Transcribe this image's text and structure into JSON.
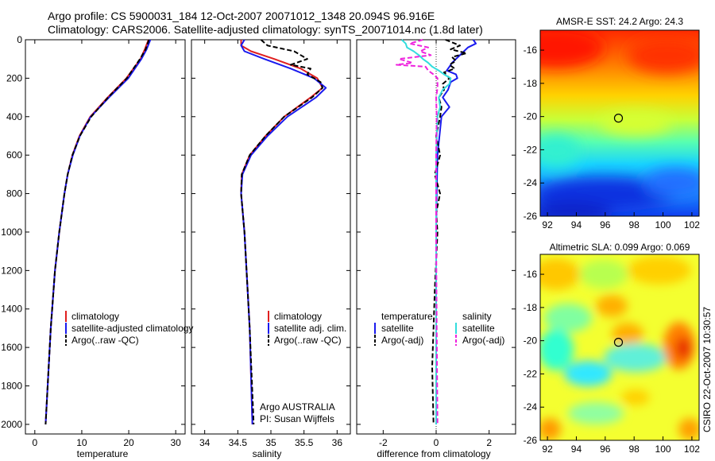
{
  "header": {
    "line1": "Argo profile: CS 5900031_184 12-Oct-2007 20071012_1348 20.094S 96.916E",
    "line2": "Climatology: CARS2006. Satellite-adjusted climatology: synTS_20071014.nc (1.8d later)"
  },
  "side_label": "CSIRO 22-Oct-2007 10:30:57",
  "colors": {
    "climatology": "#e02020",
    "satellite": "#1a1aee",
    "argo": "#000000",
    "temp_satellite": "#1a1aee",
    "sal_satellite": "#33dddd",
    "sal_argo": "#ee22dd"
  },
  "chart_data": [
    {
      "type": "line",
      "xlabel": "temperature",
      "xlim": [
        -2,
        32
      ],
      "ylim": [
        0,
        2050
      ],
      "y_reversed": true,
      "xticks": [
        0,
        10,
        20,
        30
      ],
      "yticks": [
        0,
        200,
        400,
        600,
        800,
        1000,
        1200,
        1400,
        1600,
        1800,
        2000
      ],
      "legend": [
        "climatology",
        "satellite-adjusted climatology",
        "Argo(..raw -QC)"
      ],
      "series": [
        {
          "name": "climatology",
          "style": "red",
          "depth": [
            0,
            50,
            100,
            200,
            300,
            400,
            500,
            600,
            700,
            800,
            1000,
            1200,
            1500,
            2000
          ],
          "values": [
            24.2,
            23.4,
            22.5,
            19.5,
            15.5,
            11.8,
            9.5,
            8.0,
            7.0,
            6.3,
            5.2,
            4.3,
            3.4,
            2.3
          ]
        },
        {
          "name": "satellite-adjusted climatology",
          "style": "blue",
          "depth": [
            0,
            50,
            100,
            200,
            300,
            400,
            500,
            600,
            700,
            800,
            1000,
            1200,
            1500,
            2000
          ],
          "values": [
            24.6,
            23.8,
            22.7,
            19.9,
            15.8,
            11.9,
            9.6,
            8.1,
            7.0,
            6.3,
            5.2,
            4.3,
            3.4,
            2.3
          ]
        },
        {
          "name": "Argo(..raw -QC)",
          "style": "black",
          "depth": [
            0,
            50,
            100,
            200,
            300,
            400,
            500,
            600,
            700,
            800,
            1000,
            1200,
            1500,
            2000
          ],
          "values": [
            24.3,
            23.6,
            22.4,
            19.6,
            15.6,
            12.0,
            9.6,
            8.0,
            7.0,
            6.3,
            5.2,
            4.3,
            3.4,
            2.3
          ]
        }
      ]
    },
    {
      "type": "line",
      "xlabel": "salinity",
      "xlim": [
        33.8,
        36.2
      ],
      "ylim": [
        0,
        2050
      ],
      "y_reversed": true,
      "xticks": [
        34,
        34.5,
        35,
        35.5,
        36
      ],
      "legend": [
        "climatology",
        "satellite adj. clim.",
        "Argo(..raw -QC)"
      ],
      "annotations": [
        "Argo AUSTRALIA",
        "PI: Susan Wijffels"
      ],
      "series": [
        {
          "name": "climatology",
          "style": "red",
          "depth": [
            0,
            30,
            60,
            100,
            150,
            200,
            250,
            300,
            400,
            500,
            600,
            700,
            800,
            1000,
            1500,
            2000
          ],
          "values": [
            34.55,
            34.55,
            34.7,
            35.05,
            35.45,
            35.7,
            35.78,
            35.6,
            35.2,
            34.92,
            34.68,
            34.56,
            34.55,
            34.6,
            34.68,
            34.72
          ]
        },
        {
          "name": "satellite adj. clim.",
          "style": "blue",
          "depth": [
            0,
            30,
            60,
            100,
            150,
            200,
            250,
            300,
            400,
            500,
            600,
            700,
            800,
            1000,
            1500,
            2000
          ],
          "values": [
            34.6,
            34.55,
            34.6,
            34.9,
            35.3,
            35.65,
            35.83,
            35.68,
            35.25,
            34.95,
            34.7,
            34.57,
            34.55,
            34.6,
            34.68,
            34.72
          ]
        },
        {
          "name": "Argo(..raw -QC)",
          "style": "black",
          "depth": [
            0,
            30,
            60,
            100,
            130,
            150,
            180,
            220,
            250,
            300,
            400,
            500,
            600,
            700,
            800,
            1000,
            1500,
            2000
          ],
          "values": [
            34.85,
            34.95,
            35.35,
            35.55,
            35.3,
            35.6,
            35.55,
            35.75,
            35.78,
            35.62,
            35.2,
            34.92,
            34.68,
            34.56,
            34.55,
            34.6,
            34.68,
            34.74
          ]
        }
      ]
    },
    {
      "type": "line",
      "xlabel": "difference from climatology",
      "xlim": [
        -3,
        3
      ],
      "ylim": [
        0,
        2050
      ],
      "y_reversed": true,
      "xticks": [
        -2,
        0,
        2
      ],
      "legend_temperature_title": "temperature",
      "legend_salinity_title": "salinity",
      "legend": [
        "satellite",
        "Argo(-adj)",
        "satellite",
        "Argo(-adj)"
      ],
      "series": [
        {
          "name": "temperature satellite",
          "style": "blue",
          "depth": [
            0,
            20,
            40,
            60,
            80,
            100,
            120,
            140,
            160,
            180,
            200,
            220,
            260,
            300,
            350,
            400,
            600,
            800,
            1000,
            1500,
            2000
          ],
          "values": [
            1.4,
            1.5,
            1.2,
            1.05,
            0.9,
            0.75,
            0.6,
            0.5,
            0.4,
            0.75,
            0.8,
            0.55,
            0.45,
            0.25,
            0.5,
            0.2,
            0.05,
            0.02,
            0.0,
            0.0,
            0.0
          ]
        },
        {
          "name": "temperature Argo(-adj)",
          "style": "black-dash",
          "depth": [
            0,
            30,
            50,
            70,
            90,
            110,
            130,
            150,
            170,
            200,
            230,
            260,
            300,
            350,
            400,
            500,
            600,
            700,
            800,
            900,
            1000,
            1300,
            1500,
            1700,
            2000
          ],
          "values": [
            0.35,
            0.9,
            0.55,
            1.15,
            0.6,
            0.75,
            0.5,
            0.7,
            0.3,
            0.5,
            0.25,
            0.3,
            0.1,
            0.2,
            0.15,
            0.0,
            0.15,
            -0.05,
            0.15,
            0.0,
            0.05,
            -0.05,
            -0.1,
            -0.15,
            -0.1
          ]
        },
        {
          "name": "salinity satellite",
          "style": "cyan",
          "depth": [
            0,
            20,
            40,
            60,
            80,
            100,
            120,
            140,
            160,
            180,
            200,
            230,
            260,
            300,
            350,
            400,
            600,
            800,
            1000,
            1500,
            2000
          ],
          "values": [
            -1.3,
            -1.15,
            -1.1,
            -0.85,
            -0.65,
            -0.5,
            -0.3,
            -0.15,
            0.1,
            0.3,
            0.55,
            0.5,
            0.25,
            0.1,
            0.15,
            0.05,
            0.0,
            0.0,
            0.0,
            0.0,
            0.0
          ]
        },
        {
          "name": "salinity Argo(-adj)",
          "style": "magenta-dash",
          "depth": [
            0,
            20,
            40,
            60,
            80,
            100,
            120,
            130,
            140,
            160,
            180,
            200,
            250,
            300,
            400,
            600,
            800,
            1000,
            1500,
            2000
          ],
          "values": [
            -0.5,
            -1.0,
            -0.3,
            -0.6,
            -0.2,
            -1.4,
            -0.9,
            -1.5,
            -0.4,
            -0.3,
            -0.1,
            0.05,
            0.05,
            0.0,
            0.02,
            0.0,
            0.0,
            0.0,
            0.02,
            0.05
          ]
        }
      ]
    },
    {
      "type": "heatmap",
      "title": "AMSR-E SST: 24.2 Argo: 24.3",
      "xlim": [
        91.5,
        102.5
      ],
      "ylim": [
        -26,
        -14.8
      ],
      "xticks": [
        92,
        94,
        96,
        98,
        100,
        102
      ],
      "yticks": [
        -16,
        -18,
        -20,
        -22,
        -24,
        -26
      ],
      "colormap": "jet",
      "marker": {
        "lon": 96.916,
        "lat": -20.094
      }
    },
    {
      "type": "heatmap",
      "title": "Altimetric SLA: 0.099 Argo: 0.069",
      "xlim": [
        91.5,
        102.5
      ],
      "ylim": [
        -26,
        -14.8
      ],
      "xticks": [
        92,
        94,
        96,
        98,
        100,
        102
      ],
      "yticks": [
        -16,
        -18,
        -20,
        -22,
        -24,
        -26
      ],
      "colormap": "jet",
      "marker": {
        "lon": 96.916,
        "lat": -20.094
      }
    }
  ]
}
